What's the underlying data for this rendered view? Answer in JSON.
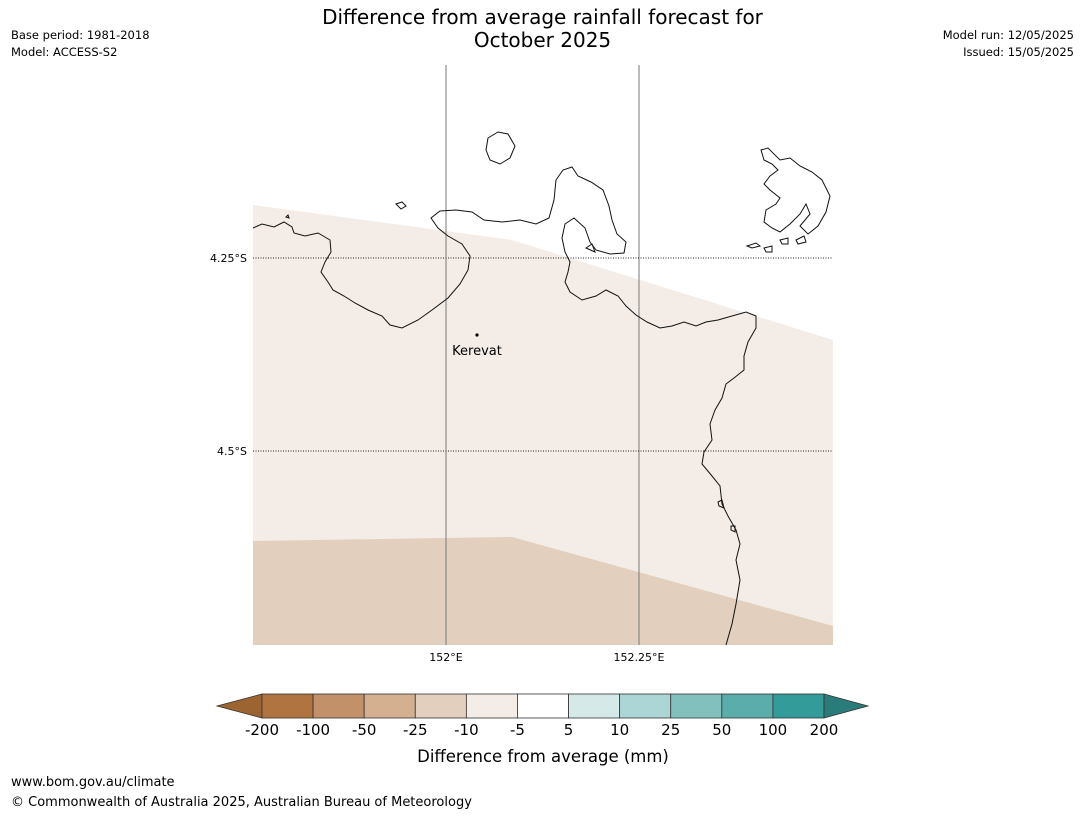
{
  "title": {
    "line1": "Difference from average rainfall forecast for",
    "line2": "October 2025"
  },
  "meta": {
    "base_period": "Base period: 1981-2018",
    "model": "Model: ACCESS-S2",
    "model_run": "Model run: 12/05/2025",
    "issued": "Issued: 15/05/2025"
  },
  "map": {
    "place_label": "Kerevat",
    "lat_labels": [
      "4.25°S",
      "4.5°S"
    ],
    "lon_labels": [
      "152°E",
      "152.25°E"
    ],
    "band_colors": {
      "minus5_to_minus10": "#f4ece6",
      "minus10_to_minus25": "#e2cfbe"
    }
  },
  "legend": {
    "title": "Difference from average (mm)",
    "ticks": [
      "-200",
      "-100",
      "-50",
      "-25",
      "-10",
      "-5",
      "5",
      "10",
      "25",
      "50",
      "100",
      "200"
    ],
    "colors": [
      "#9c6430",
      "#af743f",
      "#c29169",
      "#d4b091",
      "#e2cfbe",
      "#f4ece6",
      "#ffffff",
      "#d6e9e9",
      "#acd5d5",
      "#82c0bd",
      "#5aadab",
      "#339b99",
      "#2a7c7a"
    ]
  },
  "footer": {
    "url": "www.bom.gov.au/climate",
    "copyright": "© Commonwealth of Australia 2025, Australian Bureau of Meteorology"
  }
}
